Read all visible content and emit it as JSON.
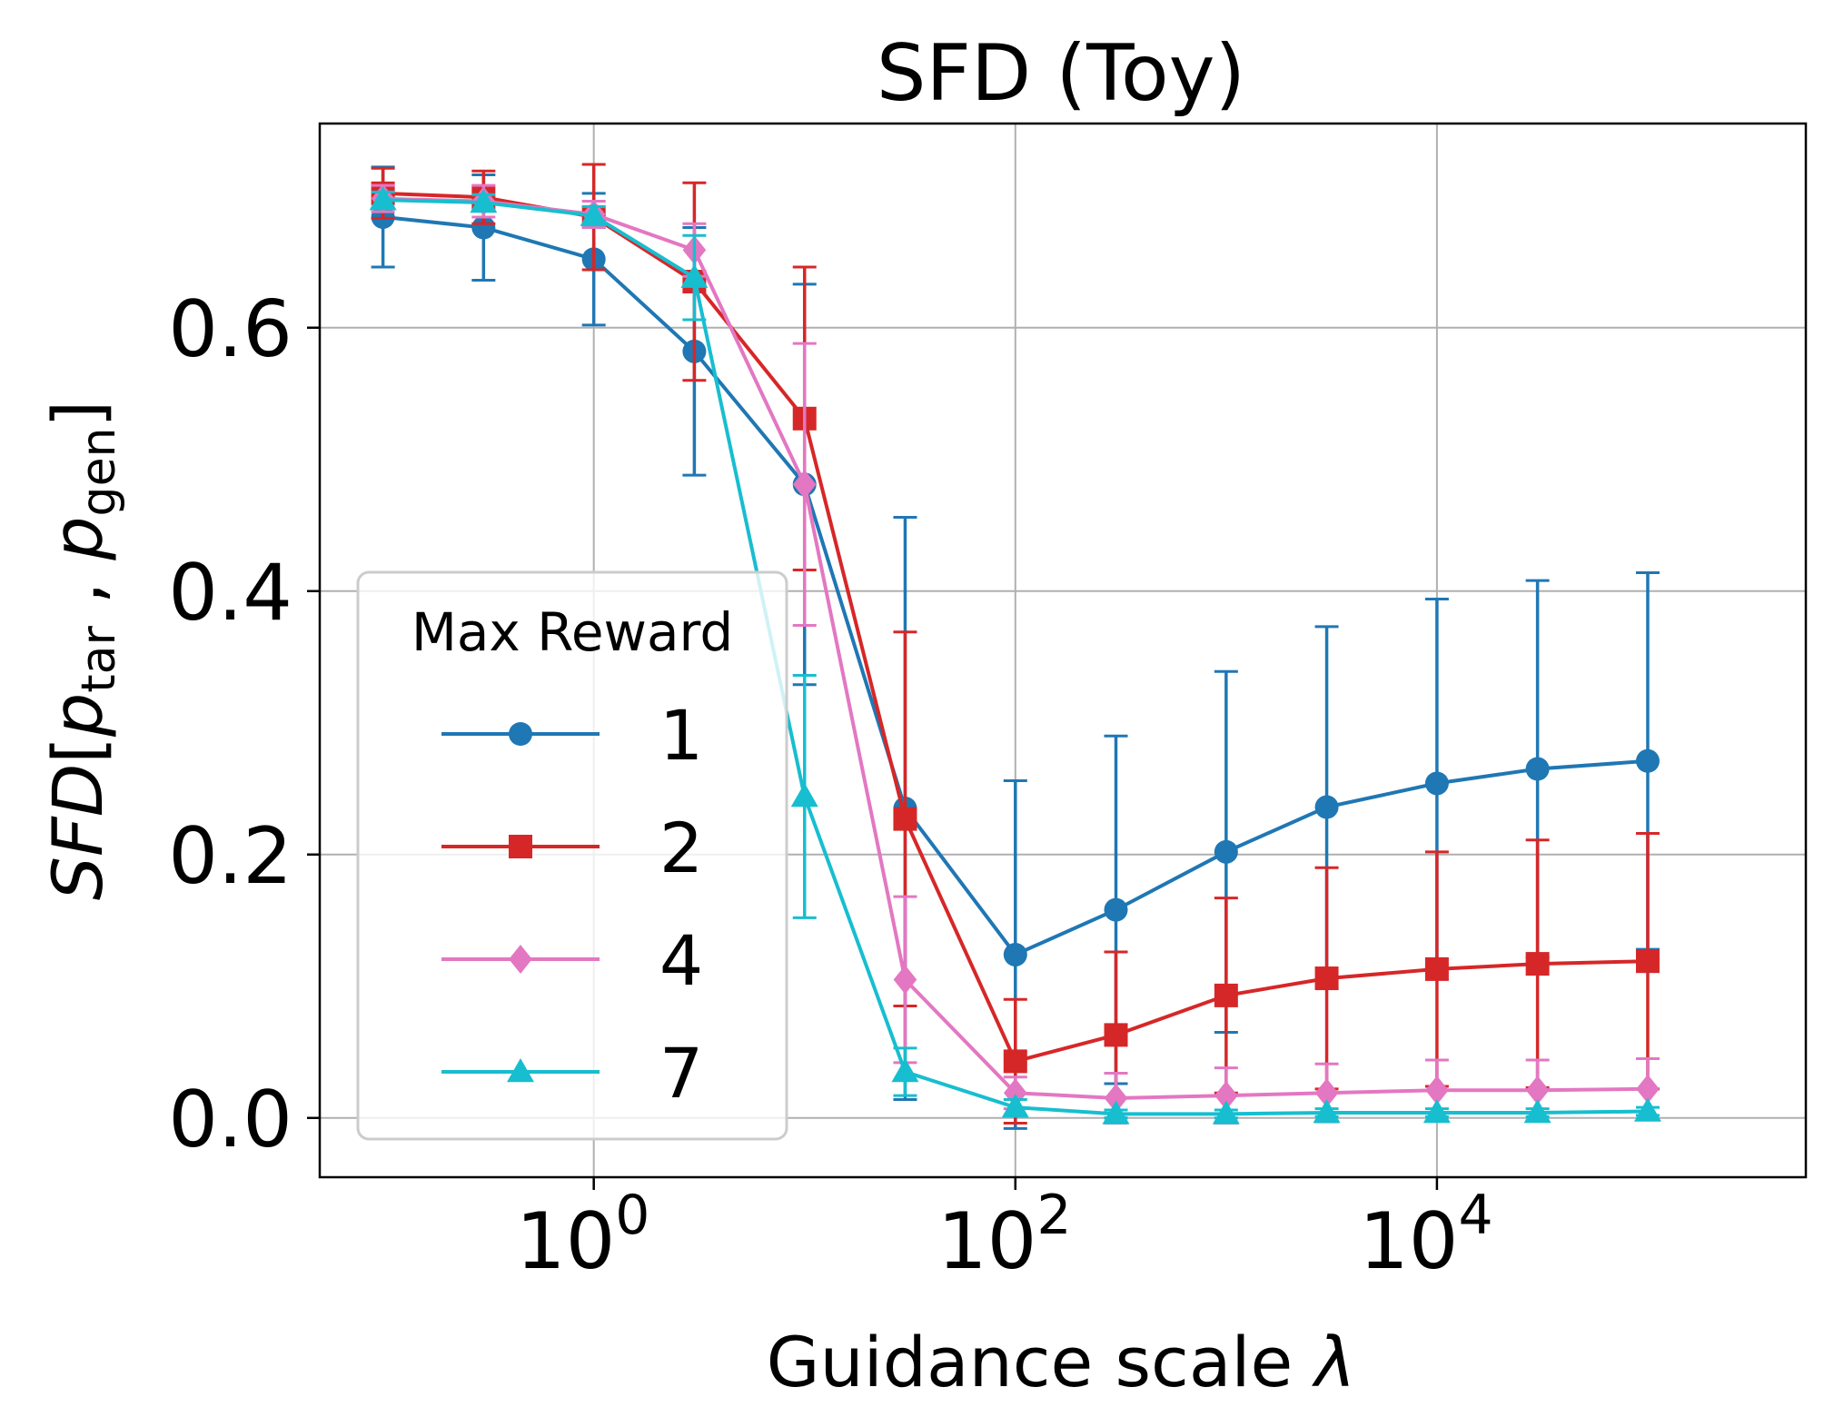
{
  "chart_data": {
    "type": "line",
    "title": "SFD (Toy)",
    "xlabel": "Guidance scale λ",
    "xlabel_main": "Guidance scale ",
    "xlabel_symbol": "λ",
    "ylabel": "SFD[p_tar , p_gen]",
    "ylabel_parts": {
      "func": "SFD",
      "open": "[",
      "p1": "p",
      "sub1": "tar",
      "sep": " , ",
      "p2": "p",
      "sub2": "gen",
      "close": "]"
    },
    "x_scale": "log",
    "xlim_log10": [
      -1.3,
      5.75
    ],
    "ylim": [
      -0.045,
      0.755
    ],
    "grid": true,
    "x_ticks": [
      {
        "base": "10",
        "exp": "0",
        "value": 1
      },
      {
        "base": "10",
        "exp": "2",
        "value": 100
      },
      {
        "base": "10",
        "exp": "4",
        "value": 10000
      }
    ],
    "y_ticks": [
      {
        "label": "0.0",
        "value": 0.0
      },
      {
        "label": "0.2",
        "value": 0.2
      },
      {
        "label": "0.4",
        "value": 0.4
      },
      {
        "label": "0.6",
        "value": 0.6
      }
    ],
    "x": [
      0.1,
      0.3,
      1,
      3,
      10,
      30,
      100,
      300,
      1000,
      3000,
      10000,
      30000,
      100000
    ],
    "legend": {
      "title": "Max Reward",
      "location": "lower left"
    },
    "series": [
      {
        "name": "1",
        "color": "#1f77b4",
        "marker": "circle",
        "values": [
          0.684,
          0.676,
          0.652,
          0.582,
          0.481,
          0.235,
          0.124,
          0.158,
          0.202,
          0.236,
          0.254,
          0.265,
          0.271
        ],
        "errors": [
          0.038,
          0.04,
          0.05,
          0.094,
          0.152,
          0.221,
          0.132,
          0.132,
          0.137,
          0.137,
          0.14,
          0.143,
          0.143
        ]
      },
      {
        "name": "2",
        "color": "#d62728",
        "marker": "square",
        "values": [
          0.702,
          0.699,
          0.684,
          0.635,
          0.531,
          0.227,
          0.043,
          0.063,
          0.093,
          0.106,
          0.113,
          0.117,
          0.119
        ],
        "errors": [
          0.019,
          0.02,
          0.04,
          0.075,
          0.115,
          0.142,
          0.047,
          0.063,
          0.074,
          0.084,
          0.089,
          0.094,
          0.097
        ]
      },
      {
        "name": "4",
        "color": "#e377c2",
        "marker": "diamond",
        "values": [
          0.698,
          0.696,
          0.686,
          0.659,
          0.481,
          0.105,
          0.019,
          0.015,
          0.017,
          0.019,
          0.021,
          0.021,
          0.022
        ],
        "errors": [
          0.01,
          0.012,
          0.01,
          0.02,
          0.107,
          0.063,
          0.012,
          0.019,
          0.021,
          0.022,
          0.023,
          0.023,
          0.023
        ]
      },
      {
        "name": "7",
        "color": "#17becf",
        "marker": "triangle",
        "values": [
          0.697,
          0.695,
          0.685,
          0.638,
          0.244,
          0.035,
          0.008,
          0.003,
          0.003,
          0.004,
          0.004,
          0.004,
          0.005
        ],
        "errors": [
          0.006,
          0.006,
          0.007,
          0.032,
          0.092,
          0.018,
          0.006,
          0.003,
          0.003,
          0.003,
          0.003,
          0.003,
          0.003
        ]
      }
    ]
  }
}
